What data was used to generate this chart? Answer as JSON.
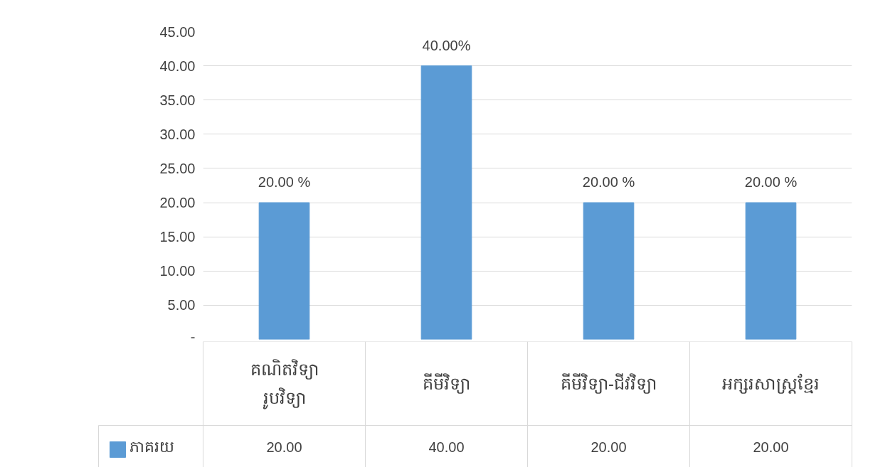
{
  "chart_data": {
    "type": "bar",
    "categories": [
      "គណិតវិទ្យា រូបវិទ្យា",
      "គីមីវិទ្យា",
      "គីមីវិទ្យា-ជីវវិទ្យា",
      "អក្សរសាស្ត្រខ្មែរ"
    ],
    "series": [
      {
        "name": "ភាគរយ",
        "color": "#5b9bd5",
        "values": [
          20,
          40,
          20,
          20
        ],
        "value_labels": [
          "20.00 %",
          "40.00%",
          "20.00 %",
          "20.00 %"
        ]
      }
    ],
    "ylim": [
      0,
      45
    ],
    "yticks": [
      {
        "value": 0,
        "label": "-"
      },
      {
        "value": 5,
        "label": "5.00"
      },
      {
        "value": 10,
        "label": "10.00"
      },
      {
        "value": 15,
        "label": "15.00"
      },
      {
        "value": 20,
        "label": "20.00"
      },
      {
        "value": 25,
        "label": "25.00"
      },
      {
        "value": 30,
        "label": "30.00"
      },
      {
        "value": 35,
        "label": "35.00"
      },
      {
        "value": 40,
        "label": "40.00"
      },
      {
        "value": 45,
        "label": "45.00"
      }
    ],
    "annotations": [
      "20.00",
      "40.00",
      "20.00",
      "20.00"
    ],
    "grid": "y",
    "legend": "bottom"
  }
}
